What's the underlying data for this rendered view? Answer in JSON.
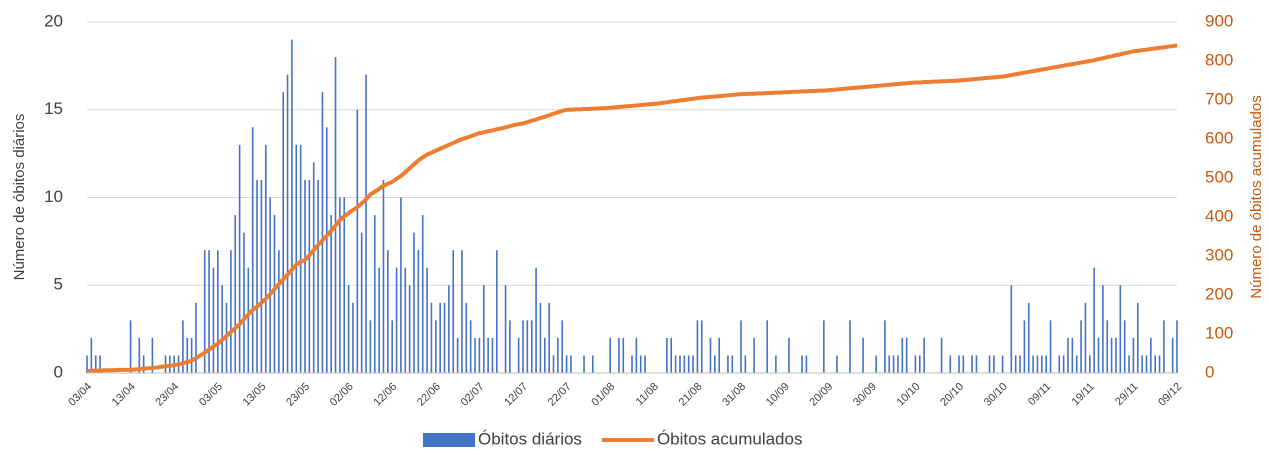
{
  "chart_data": {
    "type": "bar_line",
    "y_label": "Número de óbitos diários",
    "y2_label": "Número de óbitos acumulados",
    "categories": [
      "03/04",
      null,
      null,
      null,
      null,
      null,
      null,
      null,
      null,
      null,
      "13/04",
      null,
      null,
      null,
      null,
      null,
      null,
      null,
      null,
      null,
      "23/04",
      null,
      null,
      null,
      null,
      null,
      null,
      null,
      null,
      null,
      "03/05",
      null,
      null,
      null,
      null,
      null,
      null,
      null,
      null,
      null,
      "13/05",
      null,
      null,
      null,
      null,
      null,
      null,
      null,
      null,
      null,
      "23/05",
      null,
      null,
      null,
      null,
      null,
      null,
      null,
      null,
      null,
      "02/06",
      null,
      null,
      null,
      null,
      null,
      null,
      null,
      null,
      null,
      "12/06",
      null,
      null,
      null,
      null,
      null,
      null,
      null,
      null,
      null,
      "22/06",
      null,
      null,
      null,
      null,
      null,
      null,
      null,
      null,
      null,
      "02/07",
      null,
      null,
      null,
      null,
      null,
      null,
      null,
      null,
      null,
      "12/07",
      null,
      null,
      null,
      null,
      null,
      null,
      null,
      null,
      null,
      "22/07",
      null,
      null,
      null,
      null,
      null,
      null,
      null,
      null,
      null,
      "01/08",
      null,
      null,
      null,
      null,
      null,
      null,
      null,
      null,
      null,
      "11/08",
      null,
      null,
      null,
      null,
      null,
      null,
      null,
      null,
      null,
      "21/08",
      null,
      null,
      null,
      null,
      null,
      null,
      null,
      null,
      null,
      "31/08",
      null,
      null,
      null,
      null,
      null,
      null,
      null,
      null,
      null,
      "10/09",
      null,
      null,
      null,
      null,
      null,
      null,
      null,
      null,
      null,
      "20/09",
      null,
      null,
      null,
      null,
      null,
      null,
      null,
      null,
      null,
      "30/09",
      null,
      null,
      null,
      null,
      null,
      null,
      null,
      null,
      null,
      "10/10",
      null,
      null,
      null,
      null,
      null,
      null,
      null,
      null,
      null,
      "20/10",
      null,
      null,
      null,
      null,
      null,
      null,
      null,
      null,
      null,
      "30/10",
      null,
      null,
      null,
      null,
      null,
      null,
      null,
      null,
      null,
      "09/11",
      null,
      null,
      null,
      null,
      null,
      null,
      null,
      null,
      null,
      "19/11",
      null,
      null,
      null,
      null,
      null,
      null,
      null,
      null,
      null,
      "29/11",
      null,
      null,
      null,
      null,
      null,
      null,
      null,
      null,
      null,
      "09/12"
    ],
    "series": [
      {
        "name": "Óbitos diários",
        "color": "#4472c4",
        "kind": "bar",
        "values": [
          1,
          2,
          1,
          1,
          0,
          0,
          0,
          0,
          0,
          0,
          3,
          0,
          2,
          1,
          0,
          2,
          0,
          0,
          1,
          1,
          1,
          1,
          3,
          2,
          2,
          4,
          0,
          7,
          7,
          6,
          7,
          5,
          4,
          7,
          9,
          13,
          8,
          6,
          14,
          11,
          11,
          13,
          10,
          9,
          7,
          16,
          17,
          19,
          13,
          13,
          11,
          11,
          12,
          11,
          16,
          14,
          9,
          18,
          10,
          10,
          5,
          4,
          15,
          8,
          17,
          3,
          9,
          6,
          11,
          7,
          3,
          6,
          10,
          6,
          5,
          8,
          7,
          9,
          6,
          4,
          3,
          4,
          4,
          5,
          7,
          2,
          7,
          4,
          3,
          2,
          2,
          5,
          2,
          2,
          7,
          0,
          5,
          3,
          0,
          2,
          3,
          3,
          3,
          6,
          4,
          2,
          4,
          1,
          2,
          3,
          1,
          1,
          0,
          0,
          1,
          0,
          1,
          0,
          0,
          0,
          2,
          0,
          2,
          2,
          0,
          1,
          2,
          1,
          1,
          0,
          0,
          0,
          0,
          2,
          2,
          1,
          1,
          1,
          1,
          1,
          3,
          3,
          0,
          2,
          1,
          2,
          0,
          1,
          1,
          0,
          3,
          1,
          0,
          2,
          0,
          0,
          3,
          0,
          1,
          0,
          0,
          2,
          0,
          0,
          1,
          1,
          0,
          0,
          0,
          3,
          0,
          0,
          1,
          0,
          0,
          3,
          0,
          0,
          2,
          0,
          0,
          1,
          0,
          3,
          1,
          1,
          1,
          2,
          2,
          0,
          1,
          1,
          2,
          0,
          0,
          0,
          2,
          0,
          1,
          0,
          1,
          1,
          0,
          1,
          1,
          0,
          0,
          1,
          1,
          0,
          1,
          0,
          5,
          1,
          1,
          3,
          4,
          1,
          1,
          1,
          1,
          3,
          0,
          1,
          1,
          2,
          2,
          1,
          3,
          4,
          1,
          6,
          2,
          5,
          3,
          2,
          2,
          5,
          3,
          1,
          2,
          4,
          1,
          1,
          2,
          1,
          1,
          3,
          0,
          2,
          3
        ]
      },
      {
        "name": "Óbitos acumulados",
        "color": "#ed7d31",
        "kind": "line",
        "axis": "y2",
        "values": [
          5,
          5,
          6,
          6,
          7,
          7,
          7,
          8,
          8,
          8,
          8,
          9,
          10,
          11,
          12,
          13,
          14,
          16,
          17,
          19,
          20,
          22,
          25,
          28,
          32,
          38,
          45,
          52,
          60,
          68,
          75,
          85,
          95,
          105,
          115,
          125,
          138,
          150,
          162,
          170,
          180,
          190,
          202,
          215,
          228,
          240,
          252,
          265,
          278,
          285,
          290,
          302,
          315,
          328,
          340,
          352,
          365,
          378,
          392,
          402,
          410,
          418,
          425,
          435,
          445,
          458,
          465,
          472,
          480,
          485,
          490,
          498,
          505,
          515,
          525,
          535,
          545,
          553,
          560,
          565,
          570,
          575,
          580,
          585,
          590,
          595,
          600,
          603,
          607,
          611,
          615,
          617,
          620,
          622,
          625,
          627,
          630,
          633,
          636,
          638,
          640,
          643,
          647,
          650,
          654,
          657,
          661,
          665,
          668,
          672,
          675,
          675,
          676,
          676,
          677,
          677,
          678,
          678,
          679,
          679,
          680,
          681,
          682,
          683,
          684,
          685,
          686,
          687,
          688,
          689,
          690,
          691,
          693,
          694,
          696,
          697,
          699,
          700,
          702,
          703,
          705,
          706,
          707,
          708,
          709,
          710,
          711,
          712,
          713,
          714,
          715,
          715,
          716,
          716,
          717,
          717,
          718,
          718,
          719,
          719,
          720,
          720,
          721,
          721,
          722,
          722,
          723,
          723,
          724,
          724,
          725,
          726,
          727,
          728,
          729,
          730,
          731,
          732,
          733,
          734,
          735,
          736,
          737,
          738,
          739,
          740,
          741,
          742,
          743,
          744,
          745,
          745,
          746,
          746,
          747,
          747,
          748,
          748,
          749,
          749,
          750,
          751,
          752,
          753,
          754,
          755,
          756,
          757,
          758,
          759,
          760,
          762,
          764,
          766,
          768,
          770,
          772,
          774,
          776,
          778,
          780,
          782,
          784,
          786,
          788,
          790,
          792,
          794,
          796,
          798,
          800,
          802,
          805,
          807,
          810,
          812,
          815,
          817,
          820,
          822,
          825,
          826,
          828,
          829,
          831,
          832,
          834,
          835,
          837,
          838,
          840
        ]
      }
    ],
    "ylim": [
      0,
      20
    ],
    "yticks": [
      0,
      5,
      10,
      15,
      20
    ],
    "y2lim": [
      0,
      900
    ],
    "y2ticks": [
      0,
      100,
      200,
      300,
      400,
      500,
      600,
      700,
      800,
      900
    ],
    "grid": true,
    "legend": "bottom"
  }
}
